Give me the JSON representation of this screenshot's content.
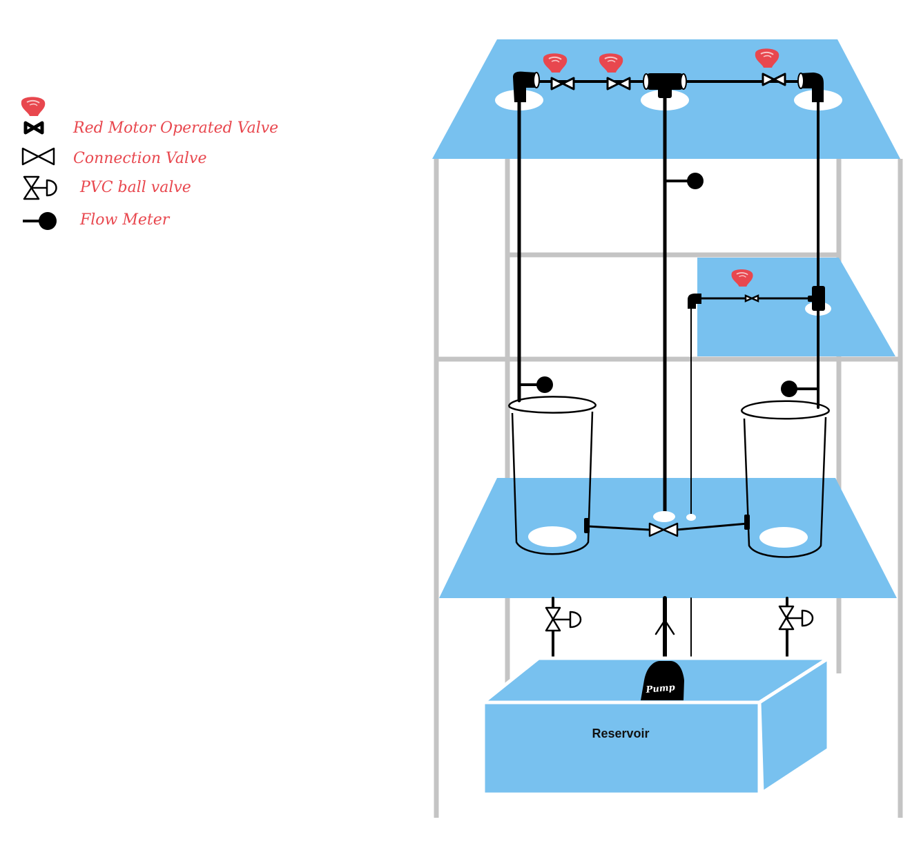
{
  "legend": {
    "motor_valve": "Red Motor Operated Valve",
    "connection_valve": "Connection Valve",
    "ball_valve": "PVC ball valve",
    "flow_meter": "Flow Meter"
  },
  "labels": {
    "reservoir": "Reservoir",
    "pump": "Pump"
  },
  "colors": {
    "water": "#78c1ef",
    "frame": "#c4c4c4",
    "pipe": "#000000",
    "motor": "#e8474e",
    "legend_text": "#e8474e"
  }
}
